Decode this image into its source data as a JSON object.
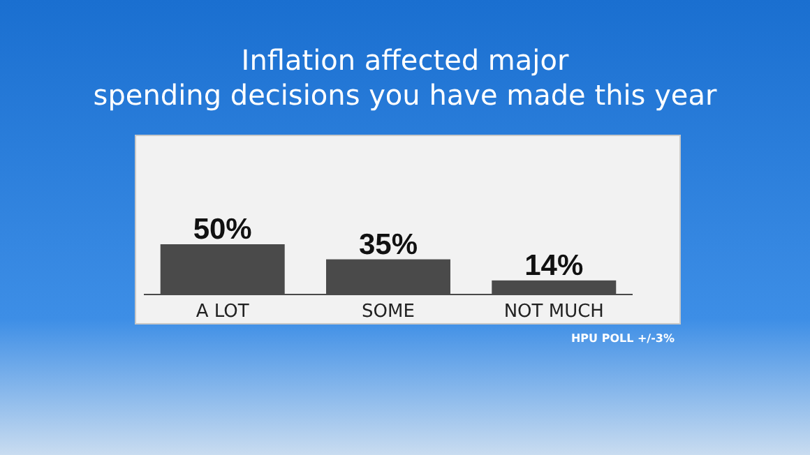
{
  "chart_data": {
    "type": "bar",
    "title": "Inflation affected major spending decisions you have made this year",
    "categories": [
      "A LOT",
      "SOME",
      "NOT MUCH"
    ],
    "values": [
      50,
      35,
      14
    ],
    "value_labels": [
      "50%",
      "35%",
      "14%"
    ],
    "color": "#4a4a4a",
    "annotations": [
      "HPU POLL +/-3%"
    ]
  }
}
